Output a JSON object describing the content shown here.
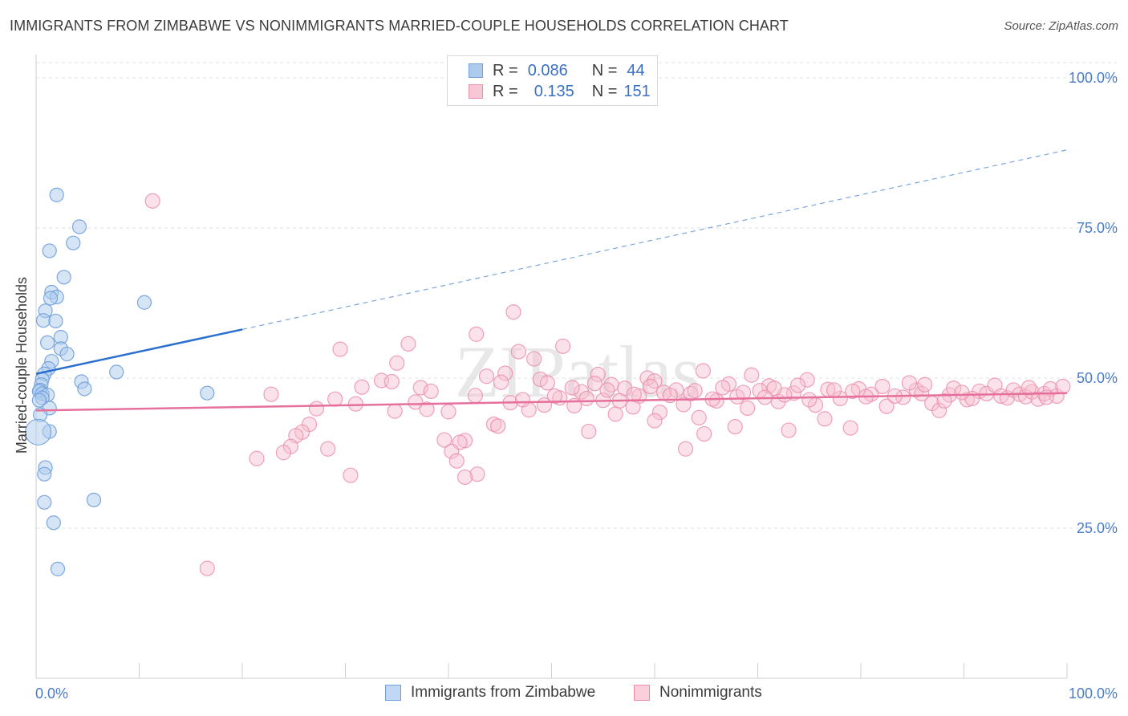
{
  "title": "IMMIGRANTS FROM ZIMBABWE VS NONIMMIGRANTS MARRIED-COUPLE HOUSEHOLDS CORRELATION CHART",
  "source": "Source: ZipAtlas.com",
  "watermark": "ZIPatlas",
  "legend": {
    "series1": {
      "r_label": "R =",
      "r_value": "0.086",
      "n_label": "N =",
      "n_value": "44"
    },
    "series2": {
      "r_label": "R =",
      "r_value": "0.135",
      "n_label": "N =",
      "n_value": "151"
    }
  },
  "colors": {
    "blue_fill": "#aecbee",
    "blue_stroke": "#6f9fdc",
    "blue_line": "#2a6fcf",
    "pink_fill": "#f7bfd1",
    "pink_stroke": "#ec8fad",
    "pink_line": "#e5709b",
    "tick_text": "#4a7cc9",
    "grid": "#e2e2e2"
  },
  "chart_data": {
    "type": "scatter",
    "title": "IMMIGRANTS FROM ZIMBABWE VS NONIMMIGRANTS MARRIED-COUPLE HOUSEHOLDS CORRELATION CHART",
    "xlabel": "",
    "ylabel": "Married-couple Households",
    "xlim": [
      0,
      100
    ],
    "ylim": [
      0,
      105
    ],
    "x_tick_labels": [
      "0.0%",
      "100.0%"
    ],
    "y_ticks": [
      25,
      50,
      75,
      100
    ],
    "y_tick_labels": [
      "25.0%",
      "50.0%",
      "75.0%",
      "100.0%"
    ],
    "legend_placement": "top-center",
    "series": [
      {
        "name": "Immigrants from Zimbabwe",
        "color": "blue",
        "trend": {
          "x0": 0,
          "y0": 50.7,
          "x1": 20,
          "y1": 58.1,
          "dashed_to_x": 100,
          "dashed_to_y": 88.0
        },
        "points": [
          {
            "x": 2.0,
            "y": 80.5
          },
          {
            "x": 4.2,
            "y": 75.2
          },
          {
            "x": 3.6,
            "y": 72.5
          },
          {
            "x": 1.3,
            "y": 71.2
          },
          {
            "x": 2.7,
            "y": 66.8
          },
          {
            "x": 1.5,
            "y": 64.3
          },
          {
            "x": 2.0,
            "y": 63.5
          },
          {
            "x": 1.4,
            "y": 63.3
          },
          {
            "x": 10.5,
            "y": 62.6
          },
          {
            "x": 0.9,
            "y": 61.2
          },
          {
            "x": 0.7,
            "y": 59.6
          },
          {
            "x": 1.9,
            "y": 59.5
          },
          {
            "x": 2.4,
            "y": 56.8
          },
          {
            "x": 1.1,
            "y": 55.9
          },
          {
            "x": 2.4,
            "y": 54.9
          },
          {
            "x": 3.0,
            "y": 54.0
          },
          {
            "x": 1.5,
            "y": 52.8
          },
          {
            "x": 1.2,
            "y": 51.6
          },
          {
            "x": 7.8,
            "y": 51.0
          },
          {
            "x": 0.8,
            "y": 50.7
          },
          {
            "x": 0.6,
            "y": 49.8
          },
          {
            "x": 4.4,
            "y": 49.4
          },
          {
            "x": 0.5,
            "y": 48.9
          },
          {
            "x": 0.4,
            "y": 48.0
          },
          {
            "x": 0.3,
            "y": 47.8
          },
          {
            "x": 4.7,
            "y": 48.2
          },
          {
            "x": 0.6,
            "y": 47.4
          },
          {
            "x": 1.1,
            "y": 47.2
          },
          {
            "x": 16.6,
            "y": 47.5
          },
          {
            "x": 0.6,
            "y": 46.7
          },
          {
            "x": 0.3,
            "y": 46.3
          },
          {
            "x": 1.3,
            "y": 45.0
          },
          {
            "x": 0.4,
            "y": 43.9
          },
          {
            "x": 1.3,
            "y": 41.1
          },
          {
            "x": 0.2,
            "y": 41.0,
            "size": "large"
          },
          {
            "x": 0.9,
            "y": 35.1
          },
          {
            "x": 0.8,
            "y": 34.0
          },
          {
            "x": 5.6,
            "y": 29.7
          },
          {
            "x": 0.8,
            "y": 29.3
          },
          {
            "x": 1.7,
            "y": 25.9
          },
          {
            "x": 2.1,
            "y": 18.2
          }
        ]
      },
      {
        "name": "Nonimmigrants",
        "color": "pink",
        "trend": {
          "x0": 0,
          "y0": 44.6,
          "x1": 100,
          "y1": 47.5
        },
        "points": [
          {
            "x": 11.3,
            "y": 79.5
          },
          {
            "x": 46.3,
            "y": 61.0
          },
          {
            "x": 42.7,
            "y": 57.3
          },
          {
            "x": 36.1,
            "y": 55.7
          },
          {
            "x": 51.1,
            "y": 55.3
          },
          {
            "x": 29.5,
            "y": 54.8
          },
          {
            "x": 46.8,
            "y": 54.4
          },
          {
            "x": 48.3,
            "y": 53.2
          },
          {
            "x": 35.0,
            "y": 52.5
          },
          {
            "x": 64.7,
            "y": 51.2
          },
          {
            "x": 45.5,
            "y": 50.8
          },
          {
            "x": 54.5,
            "y": 50.6
          },
          {
            "x": 69.4,
            "y": 50.5
          },
          {
            "x": 43.7,
            "y": 50.3
          },
          {
            "x": 59.3,
            "y": 50.0
          },
          {
            "x": 48.9,
            "y": 49.8
          },
          {
            "x": 74.8,
            "y": 49.7
          },
          {
            "x": 33.5,
            "y": 49.6
          },
          {
            "x": 60.0,
            "y": 49.5
          },
          {
            "x": 34.5,
            "y": 49.4
          },
          {
            "x": 45.1,
            "y": 49.3
          },
          {
            "x": 49.6,
            "y": 49.2
          },
          {
            "x": 54.2,
            "y": 49.1
          },
          {
            "x": 67.2,
            "y": 49.0
          },
          {
            "x": 55.8,
            "y": 48.9
          },
          {
            "x": 71.1,
            "y": 48.7
          },
          {
            "x": 31.6,
            "y": 48.5
          },
          {
            "x": 37.3,
            "y": 48.4
          },
          {
            "x": 57.1,
            "y": 48.3
          },
          {
            "x": 79.8,
            "y": 48.2
          },
          {
            "x": 76.8,
            "y": 48.1
          },
          {
            "x": 62.1,
            "y": 48.0
          },
          {
            "x": 85.4,
            "y": 48.0
          },
          {
            "x": 70.2,
            "y": 47.9
          },
          {
            "x": 38.3,
            "y": 47.8
          },
          {
            "x": 52.9,
            "y": 47.7
          },
          {
            "x": 60.9,
            "y": 47.6
          },
          {
            "x": 73.5,
            "y": 47.5
          },
          {
            "x": 22.8,
            "y": 47.3
          },
          {
            "x": 63.5,
            "y": 47.4
          },
          {
            "x": 81.0,
            "y": 47.3
          },
          {
            "x": 88.6,
            "y": 47.2
          },
          {
            "x": 42.6,
            "y": 47.1
          },
          {
            "x": 58.5,
            "y": 47.0
          },
          {
            "x": 68.0,
            "y": 46.9
          },
          {
            "x": 84.1,
            "y": 46.8
          },
          {
            "x": 50.8,
            "y": 46.7
          },
          {
            "x": 78.0,
            "y": 46.6
          },
          {
            "x": 29.0,
            "y": 46.5
          },
          {
            "x": 90.3,
            "y": 46.4
          },
          {
            "x": 55.0,
            "y": 46.3
          },
          {
            "x": 66.0,
            "y": 46.2
          },
          {
            "x": 72.0,
            "y": 46.1
          },
          {
            "x": 36.8,
            "y": 46.0
          },
          {
            "x": 46.0,
            "y": 45.9
          },
          {
            "x": 86.9,
            "y": 45.8
          },
          {
            "x": 31.0,
            "y": 45.7
          },
          {
            "x": 62.8,
            "y": 45.6
          },
          {
            "x": 75.6,
            "y": 45.5
          },
          {
            "x": 52.2,
            "y": 45.4
          },
          {
            "x": 82.5,
            "y": 45.3
          },
          {
            "x": 57.9,
            "y": 45.2
          },
          {
            "x": 69.0,
            "y": 45.0
          },
          {
            "x": 27.2,
            "y": 44.9
          },
          {
            "x": 37.9,
            "y": 44.8
          },
          {
            "x": 47.8,
            "y": 44.7
          },
          {
            "x": 87.6,
            "y": 44.6
          },
          {
            "x": 34.8,
            "y": 44.5
          },
          {
            "x": 40.0,
            "y": 44.4
          },
          {
            "x": 60.5,
            "y": 44.3
          },
          {
            "x": 56.2,
            "y": 44.0
          },
          {
            "x": 64.3,
            "y": 43.4
          },
          {
            "x": 76.5,
            "y": 43.2
          },
          {
            "x": 60.0,
            "y": 42.9
          },
          {
            "x": 26.5,
            "y": 42.3
          },
          {
            "x": 44.4,
            "y": 42.3
          },
          {
            "x": 44.8,
            "y": 42.0
          },
          {
            "x": 67.8,
            "y": 41.9
          },
          {
            "x": 79.0,
            "y": 41.7
          },
          {
            "x": 73.0,
            "y": 41.3
          },
          {
            "x": 53.6,
            "y": 41.1
          },
          {
            "x": 25.8,
            "y": 41.0
          },
          {
            "x": 64.8,
            "y": 40.7
          },
          {
            "x": 25.2,
            "y": 40.4
          },
          {
            "x": 39.6,
            "y": 39.7
          },
          {
            "x": 41.6,
            "y": 39.6
          },
          {
            "x": 41.1,
            "y": 39.3
          },
          {
            "x": 24.7,
            "y": 38.6
          },
          {
            "x": 28.3,
            "y": 38.2
          },
          {
            "x": 63.0,
            "y": 38.2
          },
          {
            "x": 40.3,
            "y": 37.8
          },
          {
            "x": 24.0,
            "y": 37.6
          },
          {
            "x": 21.4,
            "y": 36.6
          },
          {
            "x": 40.8,
            "y": 36.2
          },
          {
            "x": 42.8,
            "y": 34.0
          },
          {
            "x": 30.5,
            "y": 33.8
          },
          {
            "x": 41.6,
            "y": 33.5
          },
          {
            "x": 16.6,
            "y": 18.3
          },
          {
            "x": 89.0,
            "y": 48.3
          },
          {
            "x": 91.5,
            "y": 47.8
          },
          {
            "x": 92.2,
            "y": 47.4
          },
          {
            "x": 93.0,
            "y": 48.8
          },
          {
            "x": 93.6,
            "y": 47.0
          },
          {
            "x": 94.2,
            "y": 46.7
          },
          {
            "x": 94.8,
            "y": 48.0
          },
          {
            "x": 95.4,
            "y": 47.3
          },
          {
            "x": 96.0,
            "y": 46.9
          },
          {
            "x": 96.6,
            "y": 47.7
          },
          {
            "x": 97.2,
            "y": 46.5
          },
          {
            "x": 97.8,
            "y": 47.4
          },
          {
            "x": 98.4,
            "y": 48.2
          },
          {
            "x": 99.0,
            "y": 47.0
          },
          {
            "x": 99.6,
            "y": 48.6
          },
          {
            "x": 98.0,
            "y": 46.8
          },
          {
            "x": 96.3,
            "y": 48.4
          },
          {
            "x": 90.8,
            "y": 46.6
          },
          {
            "x": 89.8,
            "y": 47.6
          },
          {
            "x": 88.1,
            "y": 46.2
          },
          {
            "x": 85.9,
            "y": 47.4
          },
          {
            "x": 84.7,
            "y": 49.2
          },
          {
            "x": 83.3,
            "y": 47.0
          },
          {
            "x": 82.1,
            "y": 48.6
          },
          {
            "x": 80.5,
            "y": 46.9
          },
          {
            "x": 79.2,
            "y": 47.8
          },
          {
            "x": 77.4,
            "y": 48.0
          },
          {
            "x": 75.0,
            "y": 46.4
          },
          {
            "x": 73.9,
            "y": 48.8
          },
          {
            "x": 72.6,
            "y": 47.2
          },
          {
            "x": 71.6,
            "y": 48.3
          },
          {
            "x": 70.7,
            "y": 46.8
          },
          {
            "x": 68.6,
            "y": 47.6
          },
          {
            "x": 66.6,
            "y": 48.4
          },
          {
            "x": 65.6,
            "y": 46.5
          },
          {
            "x": 63.9,
            "y": 47.9
          },
          {
            "x": 61.5,
            "y": 47.1
          },
          {
            "x": 59.6,
            "y": 48.6
          },
          {
            "x": 58.0,
            "y": 47.3
          },
          {
            "x": 56.6,
            "y": 46.2
          },
          {
            "x": 55.4,
            "y": 48.0
          },
          {
            "x": 53.4,
            "y": 46.6
          },
          {
            "x": 52.0,
            "y": 48.4
          },
          {
            "x": 50.3,
            "y": 47.0
          },
          {
            "x": 49.3,
            "y": 45.5
          },
          {
            "x": 47.2,
            "y": 46.4
          },
          {
            "x": 86.2,
            "y": 48.9
          }
        ]
      }
    ]
  },
  "bottom_legend": {
    "item1": "Immigrants from Zimbabwe",
    "item2": "Nonimmigrants"
  }
}
